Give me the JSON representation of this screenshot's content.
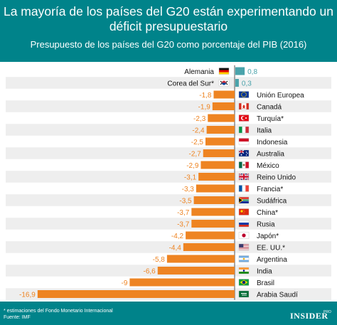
{
  "header": {
    "title": "La mayoría de los países del G20 están experimentando un déficit presupuestario",
    "subtitle": "Presupuesto de los países del G20 como porcentaje del PIB (2016)"
  },
  "footer": {
    "note": "* estimaciones del Fondo Monetario Internacional",
    "source": "Fuente: IMF",
    "brand": "INSIDER",
    "brand_suffix": "PRO"
  },
  "colors": {
    "header_bg": "#00838a",
    "bar_negative": "#ee8422",
    "bar_positive": "#4aa3ab",
    "row_stripe": "#eeeeee",
    "axis": "#555555",
    "value_negative": "#ee8422",
    "value_positive": "#4aa3ab"
  },
  "chart_data": {
    "type": "bar",
    "orientation": "horizontal",
    "categories": [
      "Alemania",
      "Corea del Sur*",
      "Unión Europea",
      "Canadá",
      "Turquía*",
      "Italia",
      "Indonesia",
      "Australia",
      "México",
      "Reino Unido",
      "Francia*",
      "Sudáfrica",
      "China*",
      "Rusia",
      "Japón*",
      "EE. UU.*",
      "Argentina",
      "India",
      "Brasil",
      "Arabia Saudí"
    ],
    "labels": [
      "0,8",
      "0,3",
      "-1,8",
      "-1,9",
      "-2,3",
      "-2,4",
      "-2,5",
      "-2,7",
      "-2,9",
      "-3,1",
      "-3,3",
      "-3,5",
      "-3,7",
      "-3,7",
      "-4,2",
      "-4,4",
      "-5,8",
      "-6,6",
      "-9",
      "-16,9"
    ],
    "values": [
      0.8,
      0.3,
      -1.8,
      -1.9,
      -2.3,
      -2.4,
      -2.5,
      -2.7,
      -2.9,
      -3.1,
      -3.3,
      -3.5,
      -3.7,
      -3.7,
      -4.2,
      -4.4,
      -5.8,
      -6.6,
      -9,
      -16.9
    ],
    "flags": [
      "germany-flag",
      "south-korea-flag",
      "eu-flag",
      "canada-flag",
      "turkey-flag",
      "italy-flag",
      "indonesia-flag",
      "australia-flag",
      "mexico-flag",
      "uk-flag",
      "france-flag",
      "south-africa-flag",
      "china-flag",
      "russia-flag",
      "japan-flag",
      "usa-flag",
      "argentina-flag",
      "india-flag",
      "brazil-flag",
      "saudi-arabia-flag"
    ],
    "xlim": [
      -16.9,
      0.8
    ],
    "grid": false,
    "legend": "none"
  }
}
